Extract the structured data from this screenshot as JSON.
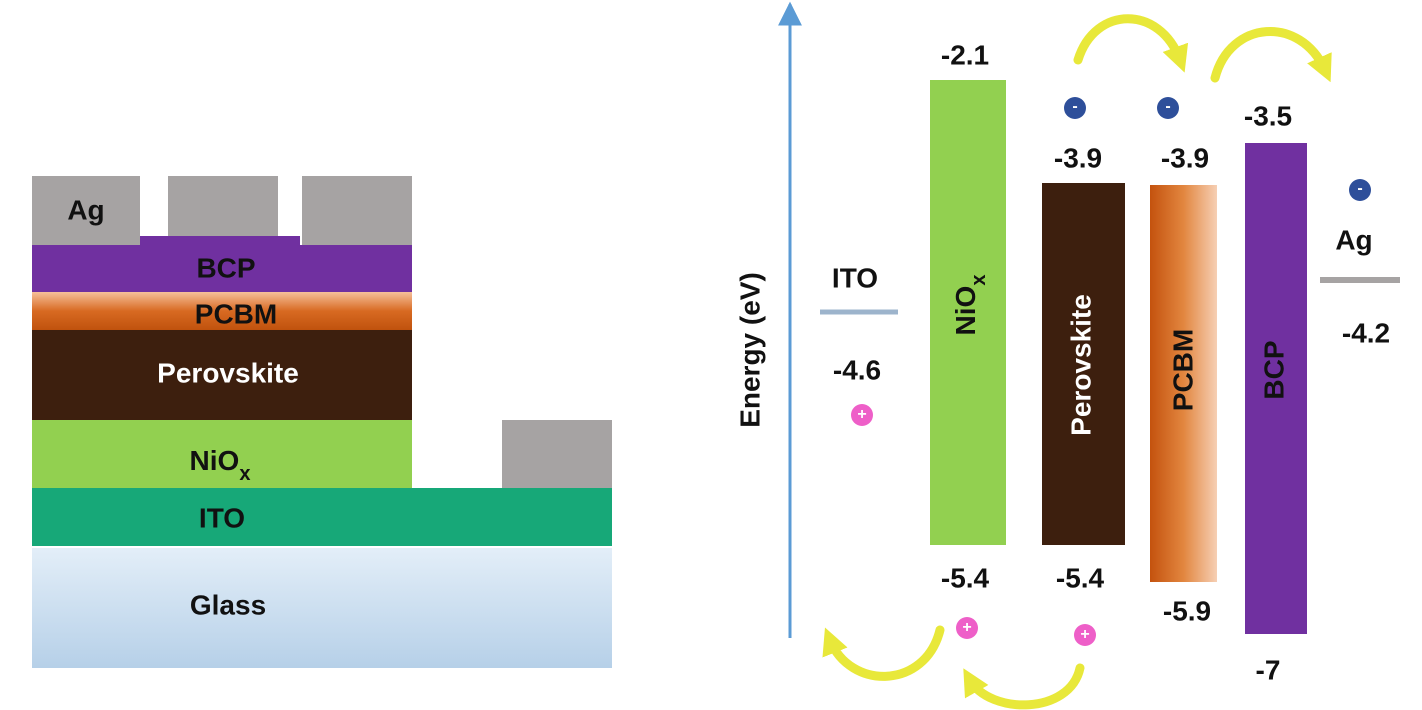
{
  "stack": {
    "ag": "Ag",
    "bcp": "BCP",
    "pcbm": "PCBM",
    "perovskite": "Perovskite",
    "niox": {
      "base": "NiO",
      "sub": "x"
    },
    "ito": "ITO",
    "glass": "Glass"
  },
  "energy": {
    "axis_label": "Energy (eV)",
    "ito": {
      "name": "ITO",
      "level": "-4.6"
    },
    "niox": {
      "name": {
        "base": "NiO",
        "sub": "x"
      },
      "top": "-2.1",
      "bottom": "-5.4"
    },
    "perovskite": {
      "name": "Perovskite",
      "top": "-3.9",
      "bottom": "-5.4"
    },
    "pcbm": {
      "name": "PCBM",
      "top": "-3.9",
      "bottom": "-5.9"
    },
    "bcp": {
      "name": "BCP",
      "top": "-3.5",
      "bottom": "-7"
    },
    "ag": {
      "name": "Ag",
      "level": "-4.2"
    }
  },
  "charges": {
    "electron": "-",
    "hole": "+"
  }
}
